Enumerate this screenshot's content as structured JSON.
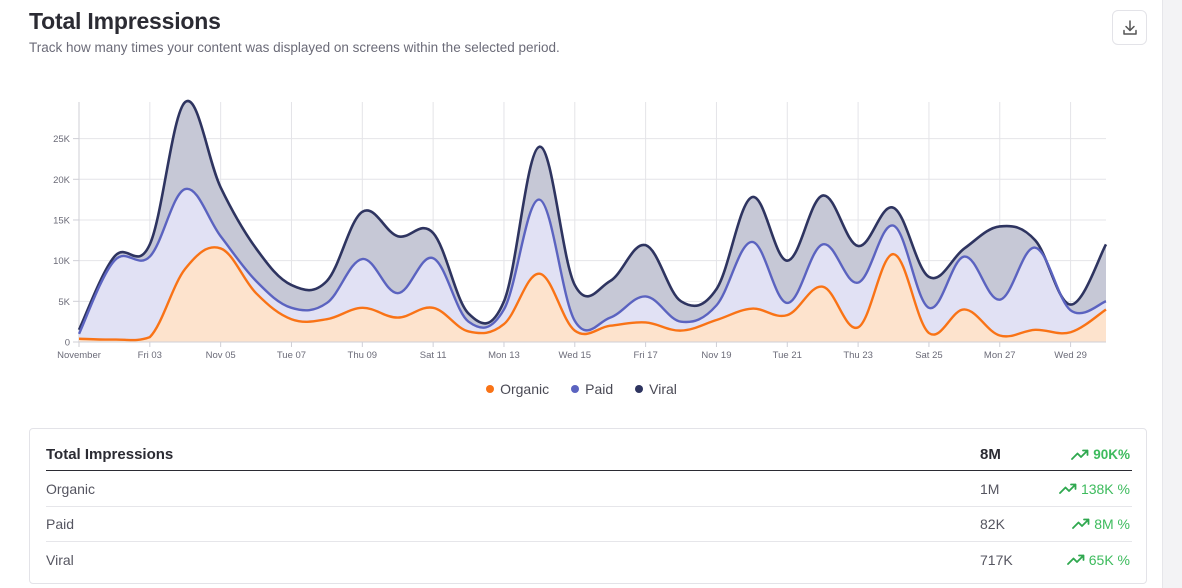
{
  "header": {
    "title": "Total Impressions",
    "subtitle": "Track how many times your content was displayed on screens within the selected period."
  },
  "toolbar": {
    "download_icon": "download-icon"
  },
  "colors": {
    "organic": "#f97316",
    "paid": "#5b63c0",
    "viral": "#2e3460",
    "up": "#3dbb5d"
  },
  "chart_data": {
    "type": "area",
    "x": [
      0,
      1,
      2,
      3,
      4,
      5,
      6,
      7,
      8,
      9,
      10,
      11,
      12,
      13,
      14,
      15,
      16,
      17,
      18,
      19,
      20,
      21,
      22,
      23,
      24,
      25,
      26,
      27,
      28,
      29
    ],
    "tick_labels": [
      "November",
      "Fri 03",
      "Nov 05",
      "Tue 07",
      "Thu 09",
      "Sat 11",
      "Mon 13",
      "Wed 15",
      "Fri 17",
      "Nov 19",
      "Tue 21",
      "Thu 23",
      "Sat 25",
      "Mon 27",
      "Wed 29"
    ],
    "ylim": [
      0,
      29500
    ],
    "yticks": [
      0,
      5000,
      10000,
      15000,
      20000,
      25000
    ],
    "ytick_labels": [
      "0",
      "5K",
      "10K",
      "15K",
      "20K",
      "25K"
    ],
    "grid": true,
    "legend": "bottom-center",
    "series": [
      {
        "name": "Organic",
        "values": [
          400,
          300,
          600,
          9000,
          11500,
          6000,
          2800,
          2800,
          4200,
          3000,
          4200,
          1300,
          2200,
          8400,
          1400,
          2000,
          2400,
          1400,
          2700,
          4100,
          3300,
          6800,
          1800,
          10800,
          1100,
          4000,
          800,
          1500,
          1200,
          4000
        ]
      },
      {
        "name": "Paid",
        "values": [
          1000,
          10000,
          10500,
          18800,
          13000,
          7500,
          4200,
          4800,
          10200,
          6000,
          10300,
          2500,
          4000,
          17500,
          2600,
          3000,
          5600,
          2500,
          4500,
          12300,
          4800,
          12000,
          7300,
          14300,
          4200,
          10500,
          5200,
          11600,
          3900,
          5000
        ]
      },
      {
        "name": "Viral",
        "values": [
          1500,
          10500,
          12000,
          29500,
          19000,
          11500,
          7000,
          7500,
          16000,
          13000,
          13400,
          3500,
          5000,
          24000,
          7000,
          7500,
          11900,
          5000,
          6500,
          17800,
          10000,
          18000,
          11800,
          16500,
          8000,
          11500,
          14200,
          12500,
          4600,
          12000
        ]
      }
    ]
  },
  "summary": {
    "title": "Total Impressions",
    "total": "8M",
    "total_change": "90K%",
    "rows": [
      {
        "name": "Organic",
        "value": "1M",
        "change": "138K %"
      },
      {
        "name": "Paid",
        "value": "82K",
        "change": "8M %"
      },
      {
        "name": "Viral",
        "value": "717K",
        "change": "65K %"
      }
    ]
  }
}
